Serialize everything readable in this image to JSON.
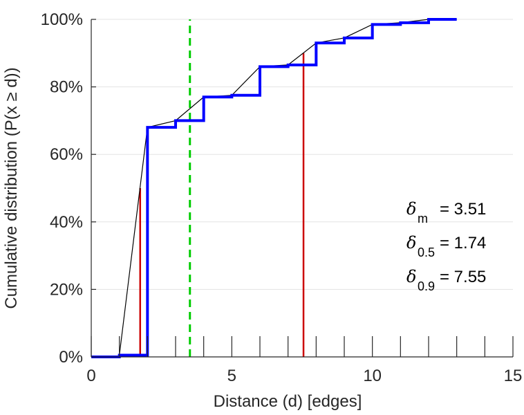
{
  "chart_data": {
    "type": "line",
    "title": "",
    "xlabel": "Distance (d) [edges]",
    "ylabel": "Cumulative distribution (P(x ≥ d))",
    "xlim": [
      0,
      15
    ],
    "ylim": [
      0,
      100
    ],
    "x_ticks": [
      "0",
      "5",
      "10",
      "15"
    ],
    "y_ticks": [
      "0%",
      "20%",
      "40%",
      "60%",
      "80%",
      "100%"
    ],
    "grid": "horizontal",
    "colors": {
      "empirical": "#0000ff",
      "smooth": "#000000",
      "mean_line": "#00cc00",
      "quantile_lines": "#cc0000"
    },
    "series": [
      {
        "style": "step",
        "color": "#0000ff",
        "points": [
          [
            0,
            0
          ],
          [
            1,
            0.5
          ],
          [
            2,
            68
          ],
          [
            3,
            70
          ],
          [
            4,
            77
          ],
          [
            5,
            77.5
          ],
          [
            6,
            86
          ],
          [
            7,
            86.5
          ],
          [
            8,
            93
          ],
          [
            9,
            94.5
          ],
          [
            10,
            98.5
          ],
          [
            11,
            99
          ],
          [
            12,
            100
          ],
          [
            13,
            100
          ]
        ]
      },
      {
        "style": "line",
        "color": "#000000",
        "points": [
          [
            1,
            0.5
          ],
          [
            2,
            68
          ],
          [
            3,
            70
          ],
          [
            4,
            77
          ],
          [
            5,
            77.5
          ],
          [
            6,
            86
          ],
          [
            7,
            86.5
          ],
          [
            8,
            93
          ],
          [
            9,
            94.5
          ],
          [
            10,
            98.5
          ],
          [
            11,
            99
          ],
          [
            12,
            100
          ],
          [
            13,
            100
          ]
        ]
      }
    ],
    "markers": [
      {
        "name": "mean",
        "x": 3.51,
        "color": "#00cc00",
        "style": "dashed"
      },
      {
        "name": "median",
        "x": 1.74,
        "y_top": 50,
        "color": "#cc0000"
      },
      {
        "name": "p90",
        "x": 7.55,
        "y_top": 90,
        "color": "#cc0000"
      }
    ],
    "annotations": [
      {
        "symbol": "δ",
        "sub": "m",
        "text": "= 3.51"
      },
      {
        "symbol": "δ",
        "sub": "0.5",
        "text": "= 1.74"
      },
      {
        "symbol": "δ",
        "sub": "0.9",
        "text": "= 7.55"
      }
    ]
  }
}
